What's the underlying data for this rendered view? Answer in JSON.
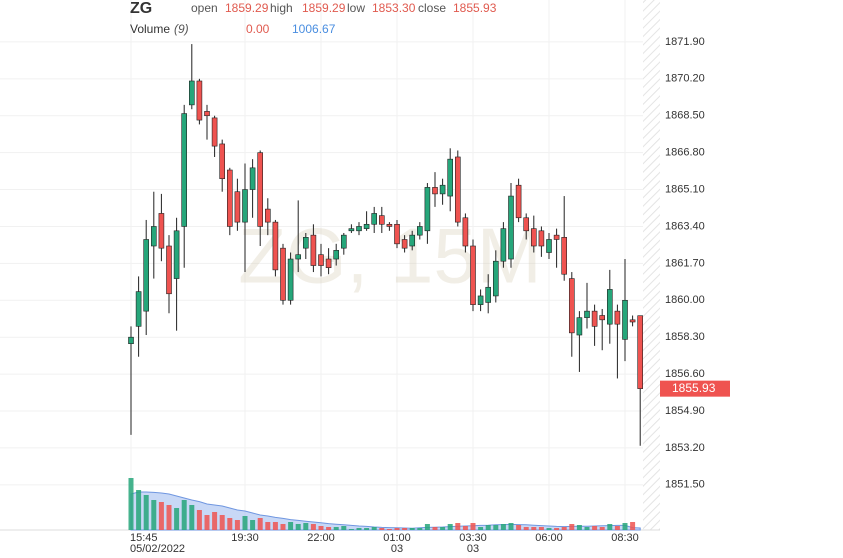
{
  "chart_data": {
    "type": "candlestick",
    "symbol": "ZG",
    "watermark": "ZG, 15M",
    "header": {
      "open_label": "open",
      "open": "1859.29",
      "high_label": "high",
      "high": "1859.29",
      "low_label": "low",
      "low": "1853.30",
      "close_label": "close",
      "close": "1855.93"
    },
    "volume_header": {
      "label": "Volume",
      "period": "(9)",
      "value": "0.00",
      "ma": "1006.67"
    },
    "categories": [
      "15:45",
      null,
      null,
      null,
      null,
      null,
      null,
      null,
      null,
      null,
      null,
      null,
      null,
      null,
      null,
      "19:30",
      null,
      null,
      null,
      null,
      null,
      null,
      null,
      null,
      null,
      "22:00",
      null,
      null,
      null,
      null,
      null,
      null,
      null,
      null,
      null,
      "01:00",
      null,
      null,
      null,
      null,
      null,
      null,
      null,
      null,
      null,
      "03:30",
      null,
      null,
      null,
      null,
      null,
      null,
      null,
      null,
      null,
      "06:00",
      null,
      null,
      null,
      null,
      null,
      null,
      null,
      null,
      null,
      "08:30",
      null,
      null
    ],
    "category_sublabels": [
      "05/02/2022",
      null,
      null,
      null,
      null,
      null,
      null,
      null,
      null,
      null,
      null,
      null,
      null,
      null,
      null,
      null,
      null,
      null,
      null,
      null,
      null,
      null,
      null,
      null,
      null,
      null,
      null,
      null,
      null,
      null,
      null,
      null,
      null,
      null,
      null,
      "03",
      null,
      null,
      null,
      null,
      null,
      null,
      null,
      null,
      null,
      "03",
      null,
      null,
      null,
      null,
      null,
      null,
      null,
      null,
      null,
      null,
      null,
      null,
      null,
      null,
      null,
      null,
      null,
      null,
      null,
      null,
      null,
      null
    ],
    "open": [
      1858.0,
      1858.8,
      1859.5,
      1862.5,
      1864.0,
      1862.5,
      1861.0,
      1863.4,
      1869.0,
      1870.1,
      1868.7,
      1868.4,
      1867.2,
      1866.0,
      1865.0,
      1863.6,
      1865.1,
      1866.8,
      1864.2,
      1863.6,
      1862.4,
      1860.0,
      1861.9,
      1862.4,
      1863.0,
      1862.1,
      1861.9,
      1861.9,
      1862.4,
      1863.2,
      1863.2,
      1863.3,
      1863.5,
      1863.9,
      1863.5,
      1863.5,
      1862.8,
      1862.5,
      1863.0,
      1863.2,
      1865.2,
      1864.9,
      1864.8,
      1866.6,
      1863.8,
      1862.5,
      1859.8,
      1859.9,
      1860.2,
      1861.8,
      1861.9,
      1865.3,
      1863.8,
      1863.3,
      1863.2,
      1862.2,
      1863.0,
      1862.9,
      1861.0,
      1858.4,
      1859.2,
      1859.5,
      1859.3,
      1858.9,
      1859.5,
      1858.2,
      1859.1,
      1859.29
    ],
    "high": [
      1858.8,
      1861.1,
      1863.7,
      1865.0,
      1864.9,
      1863.0,
      1863.8,
      1869.0,
      1871.8,
      1870.2,
      1869.0,
      1868.5,
      1867.4,
      1866.1,
      1865.6,
      1866.3,
      1866.5,
      1866.9,
      1864.7,
      1863.7,
      1862.6,
      1862.2,
      1864.6,
      1863.1,
      1863.5,
      1862.6,
      1862.4,
      1862.6,
      1863.1,
      1863.5,
      1863.6,
      1864.1,
      1864.3,
      1864.3,
      1863.6,
      1863.7,
      1863.0,
      1863.2,
      1863.6,
      1865.4,
      1865.9,
      1865.6,
      1867.0,
      1866.9,
      1864.0,
      1862.8,
      1860.5,
      1861.2,
      1862.3,
      1863.6,
      1865.4,
      1865.6,
      1864.0,
      1863.9,
      1863.4,
      1863.1,
      1863.3,
      1864.8,
      1861.3,
      1859.5,
      1860.8,
      1859.8,
      1859.6,
      1861.4,
      1859.8,
      1861.9,
      1859.3,
      1859.29
    ],
    "low": [
      1853.8,
      1857.4,
      1858.4,
      1861.0,
      1861.8,
      1859.4,
      1858.6,
      1861.5,
      1868.8,
      1868.1,
      1867.4,
      1866.6,
      1865.0,
      1863.0,
      1863.2,
      1861.3,
      1863.8,
      1862.5,
      1863.0,
      1861.1,
      1859.8,
      1859.8,
      1861.3,
      1861.9,
      1861.3,
      1861.1,
      1861.2,
      1861.6,
      1862.1,
      1863.1,
      1863.0,
      1863.2,
      1863.1,
      1863.1,
      1863.2,
      1862.4,
      1862.2,
      1862.3,
      1862.8,
      1862.6,
      1864.3,
      1864.4,
      1864.1,
      1863.4,
      1862.2,
      1859.5,
      1859.5,
      1859.4,
      1859.9,
      1861.5,
      1861.5,
      1863.6,
      1862.8,
      1862.2,
      1862.0,
      1861.9,
      1861.5,
      1860.9,
      1857.4,
      1856.7,
      1858.7,
      1857.9,
      1857.7,
      1858.0,
      1856.4,
      1857.2,
      1858.8,
      1853.3
    ],
    "close": [
      1858.3,
      1860.4,
      1862.8,
      1863.4,
      1862.4,
      1860.3,
      1863.2,
      1868.6,
      1870.1,
      1868.3,
      1868.5,
      1867.1,
      1865.6,
      1863.4,
      1863.6,
      1865.1,
      1866.1,
      1863.4,
      1863.6,
      1861.4,
      1860.0,
      1861.9,
      1862.1,
      1862.9,
      1861.6,
      1861.6,
      1861.5,
      1862.3,
      1863.0,
      1863.3,
      1863.4,
      1863.5,
      1864.0,
      1863.5,
      1863.4,
      1862.6,
      1862.4,
      1863.0,
      1863.4,
      1865.2,
      1864.9,
      1865.3,
      1866.5,
      1863.6,
      1862.5,
      1859.8,
      1860.2,
      1860.6,
      1861.8,
      1863.3,
      1864.8,
      1863.8,
      1863.2,
      1862.5,
      1862.5,
      1862.8,
      1862.8,
      1861.2,
      1858.5,
      1859.2,
      1859.5,
      1858.8,
      1859.1,
      1860.5,
      1858.9,
      1860.0,
      1859.0,
      1855.93
    ],
    "volume": [
      26000,
      20000,
      17500,
      15000,
      14000,
      12500,
      11000,
      15000,
      12500,
      10000,
      7500,
      9000,
      7500,
      6000,
      5000,
      7000,
      5000,
      6000,
      4000,
      4000,
      3000,
      4000,
      3000,
      3500,
      3000,
      2000,
      1500,
      1500,
      2000,
      500,
      1000,
      1000,
      1500,
      1000,
      500,
      1000,
      1000,
      1000,
      1000,
      3000,
      1500,
      1500,
      3000,
      3500,
      2000,
      3500,
      1500,
      2500,
      2500,
      3000,
      3500,
      2500,
      1500,
      1500,
      1500,
      1000,
      1000,
      1500,
      3000,
      2500,
      1500,
      2000,
      1500,
      3000,
      2000,
      3500,
      4000,
      0
    ],
    "volume_ma": [
      18000,
      19000,
      19000,
      18800,
      18500,
      18000,
      17000,
      16000,
      15000,
      14200,
      13000,
      12500,
      12000,
      11000,
      10000,
      9500,
      8500,
      7500,
      7000,
      6300,
      5800,
      5200,
      4800,
      4400,
      4000,
      3600,
      3200,
      2900,
      2600,
      2300,
      2000,
      1800,
      1500,
      1300,
      1200,
      1100,
      1000,
      900,
      1100,
      1300,
      1400,
      1500,
      1700,
      1900,
      2000,
      2100,
      2300,
      2400,
      2600,
      2700,
      2800,
      2700,
      2600,
      2400,
      2200,
      2000,
      1800,
      1700,
      1800,
      1900,
      1900,
      2000,
      2100,
      2200,
      2300,
      2300,
      1200,
      1006.67
    ],
    "volume_ylim": [
      0,
      50000
    ],
    "ylim": [
      1849.42,
      1873.83
    ],
    "yticks": [
      {
        "value": 1871.9,
        "label": "1871.90"
      },
      {
        "value": 1870.2,
        "label": "1870.20"
      },
      {
        "value": 1868.5,
        "label": "1868.50"
      },
      {
        "value": 1866.8,
        "label": "1866.80"
      },
      {
        "value": 1865.1,
        "label": "1865.10"
      },
      {
        "value": 1863.4,
        "label": "1863.40"
      },
      {
        "value": 1861.7,
        "label": "1861.70"
      },
      {
        "value": 1860.0,
        "label": "1860.00"
      },
      {
        "value": 1858.3,
        "label": "1858.30"
      },
      {
        "value": 1856.6,
        "label": "1856.60"
      },
      {
        "value": 1854.9,
        "label": "1854.90"
      },
      {
        "value": 1853.2,
        "label": "1853.20"
      },
      {
        "value": 1851.5,
        "label": "1851.50"
      }
    ],
    "grid": true,
    "up_color": "#26a67a",
    "down_color": "#ef5350",
    "volume_ma_color": "#9bb8ee"
  }
}
